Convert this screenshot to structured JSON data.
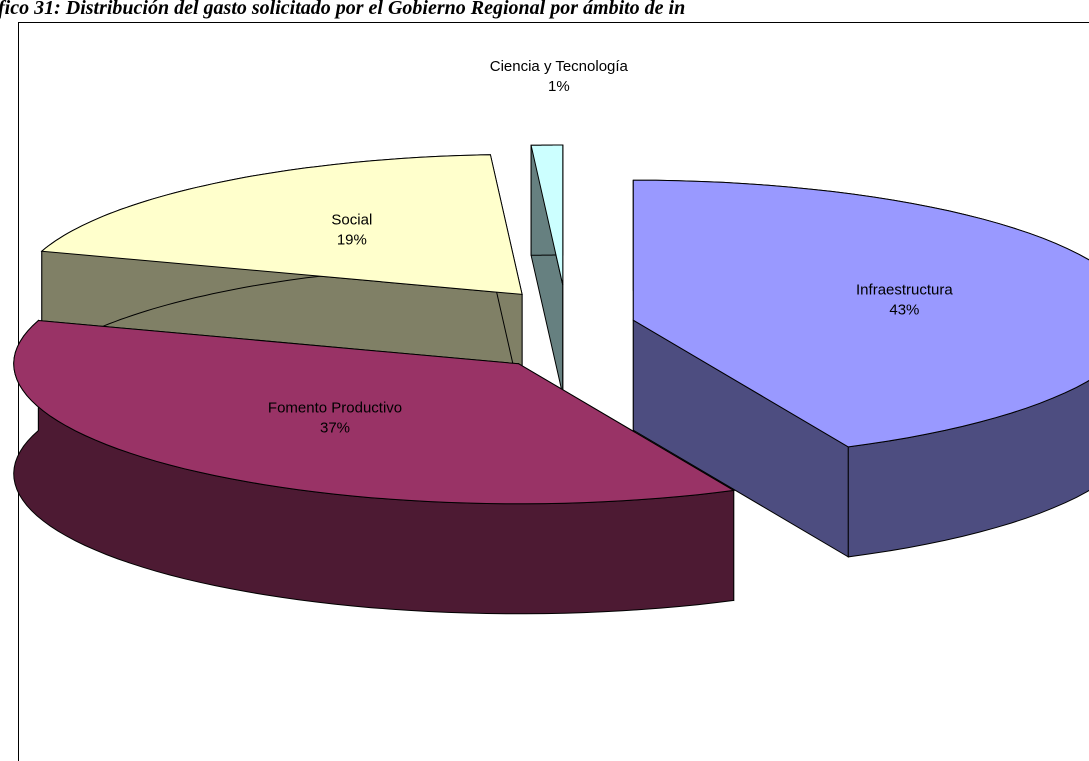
{
  "chart_data": {
    "type": "pie",
    "title": "fico 31: Distribución del gasto solicitado por el Gobierno Regional por ámbito de in",
    "categories": [
      "Infraestructura",
      "Fomento Productivo",
      "Social",
      "Ciencia y Tecnología"
    ],
    "values": [
      43,
      37,
      19,
      1
    ],
    "value_labels": [
      "43%",
      "37%",
      "19%",
      "1%"
    ],
    "colors": [
      "#9999ff",
      "#993366",
      "#ffffcc",
      "#ccffff"
    ]
  }
}
